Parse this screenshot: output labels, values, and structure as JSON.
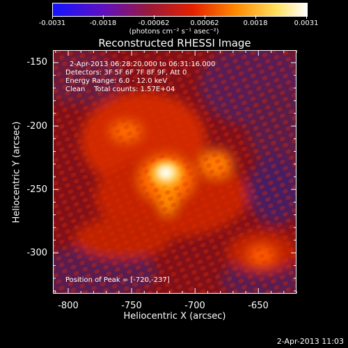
{
  "colorbar": {
    "ticks": [
      "-0.0031",
      "-0.0018",
      "-0.00062",
      "0.00062",
      "0.0018",
      "0.0031"
    ],
    "unit_label": "(photons cm⁻² s⁻¹ asec⁻²)",
    "colors": [
      "#1414ff",
      "#6010c0",
      "#9a1a3a",
      "#e42000",
      "#ff8a00",
      "#ffe060",
      "#ffffff"
    ]
  },
  "plot": {
    "title": "Reconstructed RHESSI Image",
    "xlabel": "Heliocentric X (arcsec)",
    "ylabel": "Heliocentric Y (arcsec)",
    "xticks": [
      "-800",
      "-750",
      "-700",
      "-650"
    ],
    "yticks": [
      "-150",
      "-200",
      "-250",
      "-300"
    ],
    "info_lines": [
      "2-Apr-2013 06:28:20.000 to 06:31:16.000",
      "Detectors: 3F 5F 6F 7F 8F 9F, Att 0",
      "Energy Range: 6.0 - 12.0 keV",
      "Clean    Total counts: 1.57E+04"
    ],
    "peak_label": "Position of Peak = [-720,-237]"
  },
  "footer": {
    "timestamp": "2-Apr-2013 11:03"
  }
}
